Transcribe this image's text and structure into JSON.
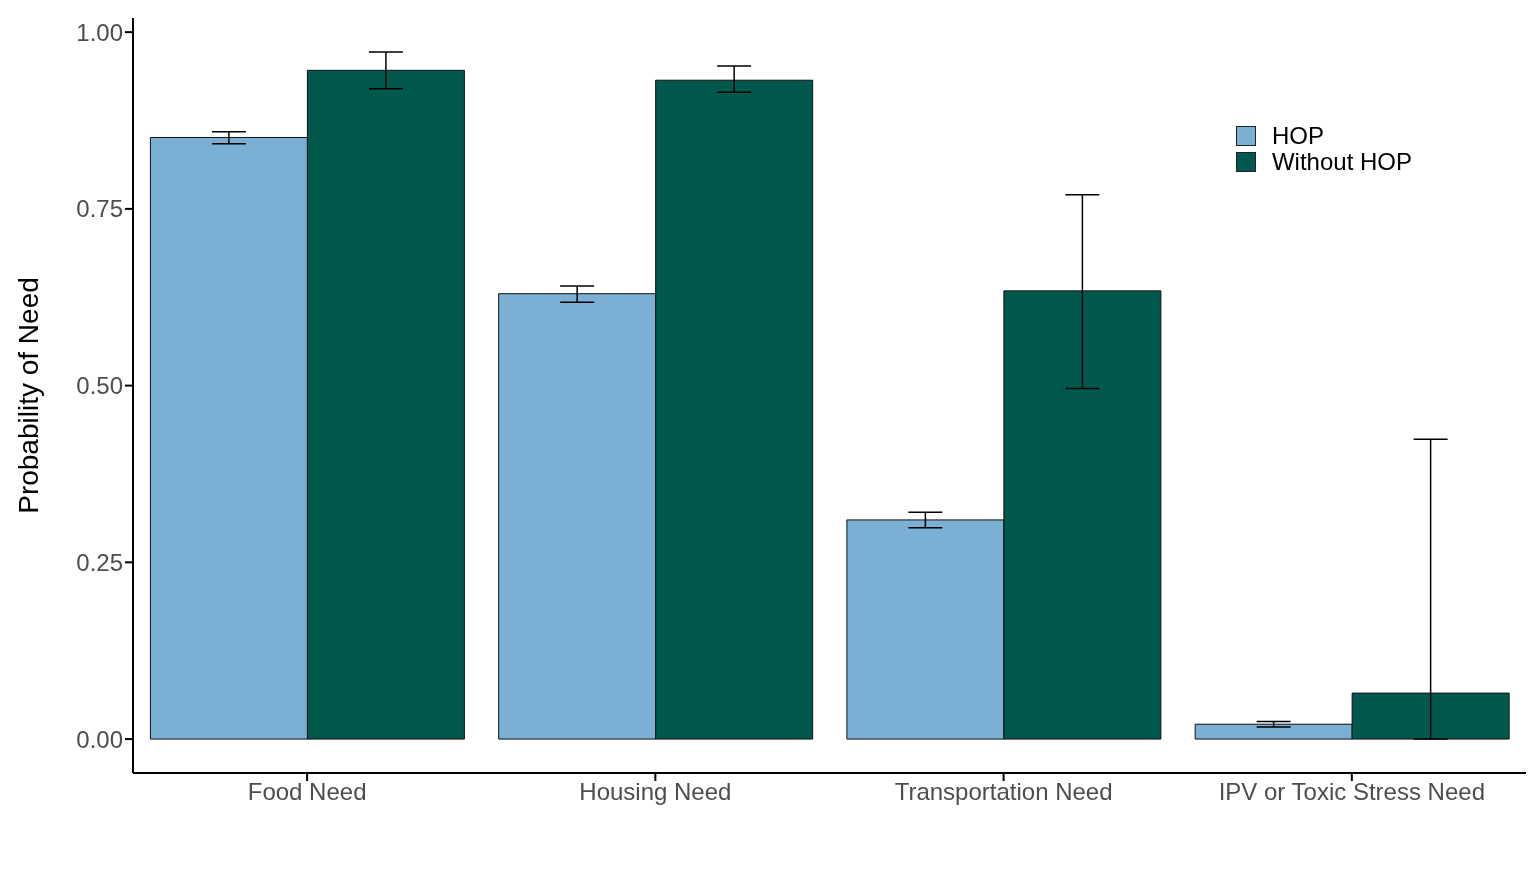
{
  "chart_data": {
    "type": "bar",
    "ylabel": "Probability of Need",
    "categories": [
      "Food Need",
      "Housing Need",
      "Transportation Need",
      "IPV or Toxic Stress Need"
    ],
    "series": [
      {
        "name": "HOP",
        "color": "#7bafd4",
        "values": [
          0.851,
          0.63,
          0.31,
          0.021
        ],
        "errors": [
          [
            0.842,
            0.859
          ],
          [
            0.618,
            0.641
          ],
          [
            0.299,
            0.321
          ],
          [
            0.017,
            0.025
          ]
        ]
      },
      {
        "name": "Without HOP",
        "color": "#00594c",
        "values": [
          0.946,
          0.932,
          0.634,
          0.065
        ],
        "errors": [
          [
            0.92,
            0.972
          ],
          [
            0.915,
            0.952
          ],
          [
            0.496,
            0.77
          ],
          [
            0.0,
            0.424
          ]
        ]
      }
    ],
    "ylim": [
      -0.048,
      1.02
    ],
    "yticks": [
      {
        "value": 0,
        "label": "0.00"
      },
      {
        "value": 0.25,
        "label": "0.25"
      },
      {
        "value": 0.5,
        "label": "0.50"
      },
      {
        "value": 0.75,
        "label": "0.75"
      },
      {
        "value": 1,
        "label": "1.00"
      }
    ],
    "grid": false,
    "legend": "top right"
  }
}
